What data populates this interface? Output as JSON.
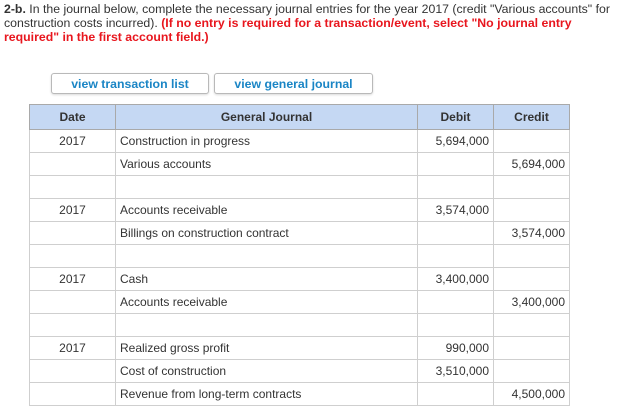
{
  "instructions": {
    "number": "2-b.",
    "text": "In the journal below, complete the necessary journal entries for the year 2017 (credit \"Various accounts\" for construction costs incurred).",
    "emphasis": "(If no entry is required for a transaction/event, select \"No journal entry required\" in the first account field.)"
  },
  "buttons": {
    "transaction_list": "view transaction list",
    "general_journal": "view general journal"
  },
  "table": {
    "headers": {
      "date": "Date",
      "journal": "General Journal",
      "debit": "Debit",
      "credit": "Credit"
    },
    "rows": [
      {
        "date": "2017",
        "account": "Construction in progress",
        "indent": false,
        "debit": "5,694,000",
        "credit": ""
      },
      {
        "date": "",
        "account": "Various accounts",
        "indent": true,
        "debit": "",
        "credit": "5,694,000"
      },
      {
        "date": "",
        "account": "",
        "indent": false,
        "debit": "",
        "credit": ""
      },
      {
        "date": "2017",
        "account": "Accounts receivable",
        "indent": false,
        "debit": "3,574,000",
        "credit": ""
      },
      {
        "date": "",
        "account": "Billings on construction contract",
        "indent": true,
        "debit": "",
        "credit": "3,574,000"
      },
      {
        "date": "",
        "account": "",
        "indent": false,
        "debit": "",
        "credit": ""
      },
      {
        "date": "2017",
        "account": "Cash",
        "indent": false,
        "debit": "3,400,000",
        "credit": ""
      },
      {
        "date": "",
        "account": "Accounts receivable",
        "indent": true,
        "debit": "",
        "credit": "3,400,000"
      },
      {
        "date": "",
        "account": "",
        "indent": false,
        "debit": "",
        "credit": ""
      },
      {
        "date": "2017",
        "account": "Realized gross profit",
        "indent": false,
        "debit": "990,000",
        "credit": ""
      },
      {
        "date": "",
        "account": "Cost of construction",
        "indent": false,
        "debit": "3,510,000",
        "credit": ""
      },
      {
        "date": "",
        "account": "Revenue from long-term contracts",
        "indent": true,
        "debit": "",
        "credit": "4,500,000"
      }
    ]
  }
}
